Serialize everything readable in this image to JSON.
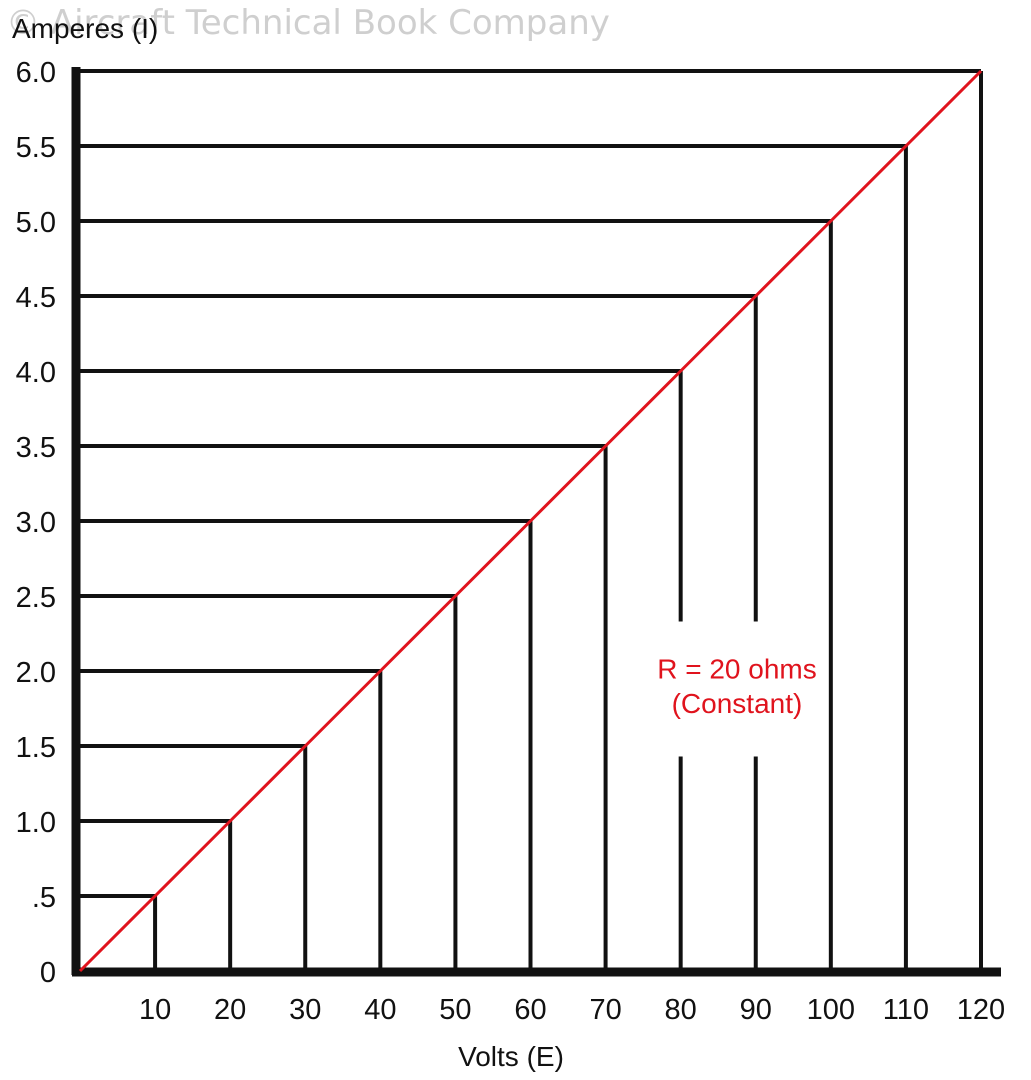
{
  "watermark": "© Aircraft Technical Book Company",
  "chart_data": {
    "type": "line",
    "ylabel": "Amperes (I)",
    "xlabel": "Volts (E)",
    "x": [
      0,
      10,
      20,
      30,
      40,
      50,
      60,
      70,
      80,
      90,
      100,
      110,
      120
    ],
    "series": [
      {
        "values": [
          0,
          0.5,
          1.0,
          1.5,
          2.0,
          2.5,
          3.0,
          3.5,
          4.0,
          4.5,
          5.0,
          5.5,
          6.0
        ],
        "color": "#e0131d"
      }
    ],
    "xlim": [
      0,
      120
    ],
    "ylim": [
      0,
      6.0
    ],
    "x_tick_labels": [
      "10",
      "20",
      "30",
      "40",
      "50",
      "60",
      "70",
      "80",
      "90",
      "100",
      "110",
      "120"
    ],
    "y_ticks": [
      {
        "value": 0,
        "label": "0"
      },
      {
        "value": 0.5,
        "label": ".5"
      },
      {
        "value": 1.0,
        "label": "1.0"
      },
      {
        "value": 1.5,
        "label": "1.5"
      },
      {
        "value": 2.0,
        "label": "2.0"
      },
      {
        "value": 2.5,
        "label": "2.5"
      },
      {
        "value": 3.0,
        "label": "3.0"
      },
      {
        "value": 3.5,
        "label": "3.5"
      },
      {
        "value": 4.0,
        "label": "4.0"
      },
      {
        "value": 4.5,
        "label": "4.5"
      },
      {
        "value": 5.0,
        "label": "5.0"
      },
      {
        "value": 5.5,
        "label": "5.5"
      },
      {
        "value": 6.0,
        "label": "6.0"
      }
    ],
    "annotation": {
      "line1": "R = 20 ohms",
      "line2": "(Constant)",
      "color": "#e0131d"
    },
    "grid": "drop lines from each data point to both axes",
    "legend": "none"
  }
}
